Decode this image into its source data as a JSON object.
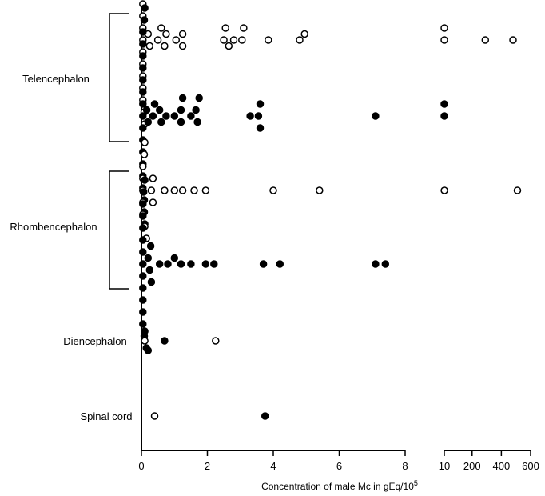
{
  "chart_data": {
    "type": "scatter",
    "title": "",
    "xlabel": "Concentration of male Mc in gEq/10",
    "xlabel_superscript": "5",
    "ylabel": "",
    "x_axis_segments": [
      {
        "range": [
          0,
          8
        ],
        "ticks": [
          0,
          2,
          4,
          6,
          8
        ],
        "tick_labels": [
          "0",
          "2",
          "4",
          "6",
          "8"
        ]
      },
      {
        "range": [
          10,
          600
        ],
        "ticks": [
          10,
          200,
          400,
          600
        ],
        "tick_labels": [
          "10",
          "200",
          "400",
          "600"
        ]
      }
    ],
    "grid": false,
    "legend": "none",
    "categories": [
      "Telencephalon",
      "Rhombencephalon",
      "Diencephalon",
      "Spinal cord"
    ],
    "series_styles": {
      "open": {
        "marker": "open-circle",
        "color": "#000000"
      },
      "filled": {
        "marker": "filled-circle",
        "color": "#000000"
      }
    },
    "groups": [
      {
        "category": "Telencephalon",
        "open_values": [
          0.02,
          0.02,
          0.02,
          0.02,
          0.02,
          0.02,
          0.02,
          0.02,
          0.02,
          0.02,
          0.02,
          0.02,
          0.06,
          0.06,
          0.1,
          0.14,
          0.2,
          0.25,
          0.5,
          0.6,
          0.7,
          0.75,
          1.05,
          1.25,
          1.25,
          2.5,
          2.55,
          2.65,
          2.8,
          3.05,
          3.1,
          3.85,
          4.8,
          4.95,
          10,
          10,
          290,
          480
        ],
        "filled_values": [
          0.02,
          0.02,
          0.02,
          0.02,
          0.02,
          0.02,
          0.02,
          0.02,
          0.02,
          0.02,
          0.02,
          0.02,
          0.02,
          0.02,
          0.06,
          0.06,
          0.06,
          0.1,
          0.1,
          0.16,
          0.2,
          0.35,
          0.4,
          0.55,
          0.6,
          0.75,
          1.0,
          1.2,
          1.2,
          1.25,
          1.5,
          1.65,
          1.7,
          1.75,
          3.3,
          3.55,
          3.6,
          3.6,
          7.1,
          10,
          10
        ]
      },
      {
        "category": "Rhombencephalon",
        "open_values": [
          0.02,
          0.02,
          0.02,
          0.02,
          0.02,
          0.06,
          0.1,
          0.1,
          0.15,
          0.3,
          0.35,
          0.35,
          0.7,
          1.0,
          1.25,
          1.6,
          1.95,
          4.0,
          5.4,
          10.5,
          510
        ],
        "filled_values": [
          0.02,
          0.02,
          0.02,
          0.02,
          0.02,
          0.02,
          0.02,
          0.02,
          0.02,
          0.02,
          0.02,
          0.04,
          0.06,
          0.1,
          0.15,
          0.2,
          0.25,
          0.28,
          0.3,
          0.55,
          0.8,
          1.0,
          1.2,
          1.5,
          1.95,
          2.2,
          3.7,
          4.2,
          7.1,
          7.4
        ]
      },
      {
        "category": "Diencephalon",
        "open_values": [
          0.1,
          2.25
        ],
        "filled_values": [
          0.1,
          0.2,
          0.7
        ]
      },
      {
        "category": "Spinal cord",
        "open_values": [
          0.4
        ],
        "filled_values": [
          3.75
        ]
      }
    ],
    "brackets": [
      {
        "label": "Telencephalon",
        "groups": [
          "Telencephalon"
        ]
      },
      {
        "label": "Rhombencephalon",
        "groups": [
          "Rhombencephalon"
        ]
      }
    ]
  }
}
